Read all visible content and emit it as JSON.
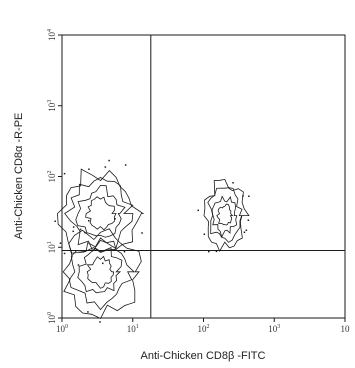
{
  "chart_data": {
    "type": "contour",
    "title": "",
    "xlabel": "Anti-Chicken CD8β -FITC",
    "ylabel": "Anti-Chicken CD8α -R-PE",
    "x_scale": "log",
    "y_scale": "log",
    "xlim": [
      1,
      10000
    ],
    "ylim": [
      1,
      10000
    ],
    "x_ticks": [
      {
        "value": 1,
        "label": "10",
        "exp": "0"
      },
      {
        "value": 10,
        "label": "10",
        "exp": "1"
      },
      {
        "value": 100,
        "label": "10",
        "exp": "2"
      },
      {
        "value": 1000,
        "label": "10",
        "exp": "3"
      },
      {
        "value": 10000,
        "label": "10",
        "exp": ""
      }
    ],
    "y_ticks": [
      {
        "value": 1,
        "label": "10",
        "exp": "0"
      },
      {
        "value": 10,
        "label": "10",
        "exp": "1"
      },
      {
        "value": 100,
        "label": "10",
        "exp": "2"
      },
      {
        "value": 1000,
        "label": "10",
        "exp": "3"
      },
      {
        "value": 10000,
        "label": "10",
        "exp": "4"
      }
    ],
    "quadrant_gates": {
      "x": 18,
      "y": 9
    },
    "populations": [
      {
        "x": 3.5,
        "y": 4.5,
        "description": "CD8α- CD8β- (lower-left)"
      },
      {
        "x": 3.5,
        "y": 30,
        "description": "CD8α+ CD8β- (upper-left)"
      },
      {
        "x": 200,
        "y": 28,
        "description": "CD8α+ CD8β+ (upper-right)"
      }
    ],
    "grid": false,
    "legend": "none"
  }
}
